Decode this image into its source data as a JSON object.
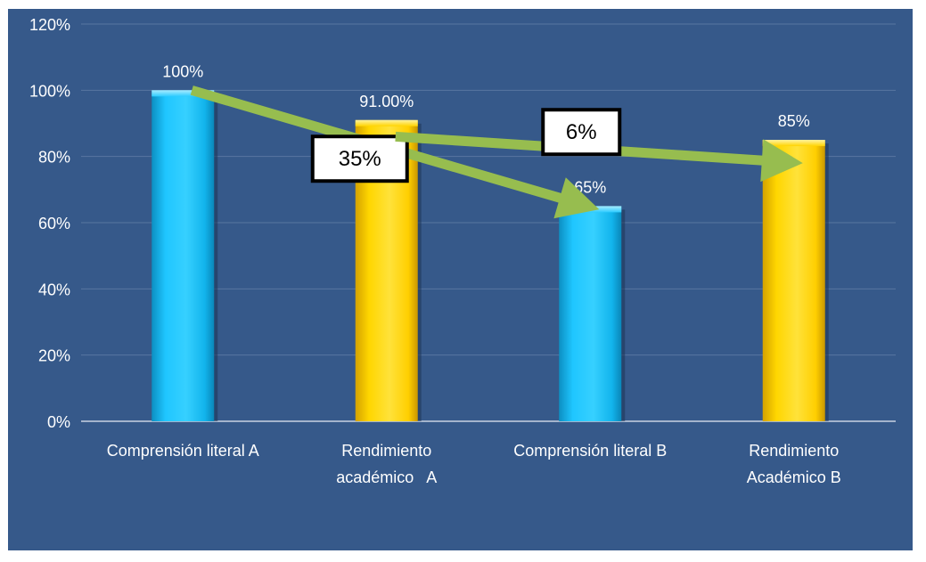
{
  "chart_data": {
    "type": "bar",
    "categories": [
      [
        "Comprensión literal A"
      ],
      [
        "Rendimiento",
        "académico   A"
      ],
      [
        "Comprensión literal B"
      ],
      [
        "Rendimiento",
        "Académico B"
      ]
    ],
    "values": [
      100,
      91,
      65,
      85
    ],
    "value_labels": [
      "100%",
      "91.00%",
      "65%",
      "85%"
    ],
    "bar_colors": [
      "#13bdf5",
      "#ffd200",
      "#13bdf5",
      "#ffd200"
    ],
    "ylim": [
      0,
      120
    ],
    "yticks": [
      0,
      20,
      40,
      60,
      80,
      100,
      120
    ],
    "ytick_labels": [
      "0%",
      "20%",
      "40%",
      "60%",
      "80%",
      "100%",
      "120%"
    ],
    "grid": true,
    "legend": "none",
    "title": "",
    "xlabel": "",
    "ylabel": "",
    "background_color": "#36598a",
    "annotations": [
      {
        "text": "35%",
        "from_category": 0,
        "to_category": 2,
        "from_value": 100,
        "to_value": 64
      },
      {
        "text": "6%",
        "from_category": 1,
        "to_category": 3,
        "from_value": 86,
        "to_value": 78
      }
    ],
    "arrow_color": "#97bd4f"
  }
}
